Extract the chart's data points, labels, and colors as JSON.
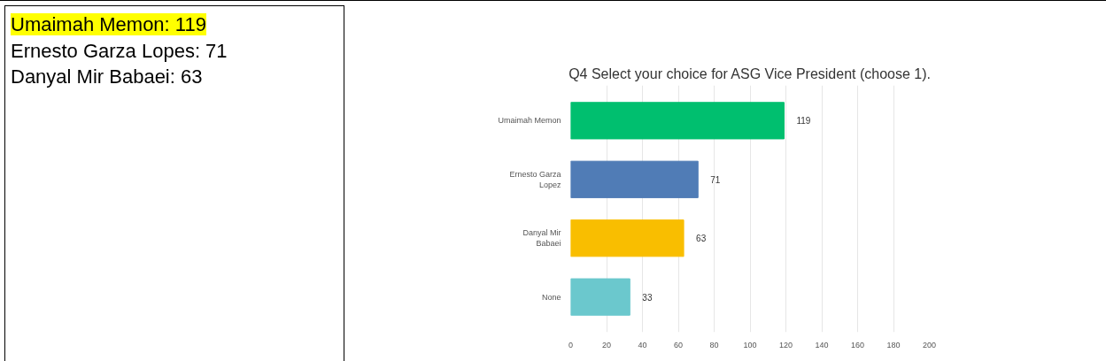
{
  "chart_data": {
    "type": "bar",
    "orientation": "horizontal",
    "title": "Q4 Select your choice for ASG Vice President (choose 1).",
    "categories": [
      "Umaimah Memon",
      "Ernesto Garza Lopez",
      "Danyal Mir Babaei",
      "None"
    ],
    "values": [
      119,
      71,
      63,
      33
    ],
    "colors": [
      "#00bf6f",
      "#507cb6",
      "#f9be00",
      "#6bc8cd"
    ],
    "xlim": [
      0,
      200
    ],
    "xticks": [
      0,
      20,
      40,
      60,
      80,
      100,
      120,
      140,
      160,
      180,
      200
    ],
    "grid": "x",
    "data_labels": true,
    "annotations": [
      "Umaimah Memon: 119",
      "Ernesto Garza Lopes: 71",
      "Danyal Mir Babaei: 63"
    ]
  }
}
